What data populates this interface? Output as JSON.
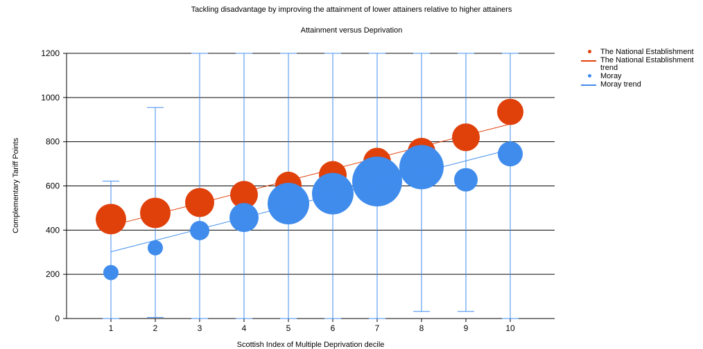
{
  "chart_data": {
    "type": "scatter",
    "title": "Tackling disadvantage by improving the attainment of lower attainers relative to higher attainers",
    "subtitle": "Attainment versus Deprivation",
    "xlabel": "Scottish Index of Multiple Deprivation decile",
    "ylabel": "Complementary Tariff Points",
    "xlim": [
      0,
      11
    ],
    "ylim": [
      0,
      1200
    ],
    "xticks": [
      1,
      2,
      3,
      4,
      5,
      6,
      7,
      8,
      9,
      10
    ],
    "yticks": [
      0,
      200,
      400,
      600,
      800,
      1000,
      1200
    ],
    "grid": "horizontal",
    "legend_position": "top-right",
    "series": [
      {
        "name": "The National Establishment",
        "color": "#e0400a",
        "marker": "bubble",
        "points": [
          {
            "x": 1,
            "y": 450,
            "size": 22
          },
          {
            "x": 2,
            "y": 478,
            "size": 22
          },
          {
            "x": 3,
            "y": 525,
            "size": 21
          },
          {
            "x": 4,
            "y": 560,
            "size": 20
          },
          {
            "x": 5,
            "y": 605,
            "size": 19
          },
          {
            "x": 6,
            "y": 650,
            "size": 20
          },
          {
            "x": 7,
            "y": 710,
            "size": 20
          },
          {
            "x": 8,
            "y": 755,
            "size": 20
          },
          {
            "x": 9,
            "y": 820,
            "size": 20
          },
          {
            "x": 10,
            "y": 935,
            "size": 19
          }
        ]
      },
      {
        "name": "The National Establishment trend",
        "color": "#e0400a",
        "type": "line",
        "x": [
          1,
          10
        ],
        "y": [
          420,
          880
        ]
      },
      {
        "name": "Moray",
        "color": "#3f8ced",
        "marker": "bubble",
        "points": [
          {
            "x": 1,
            "y": 208,
            "size": 11,
            "err_low": 0,
            "err_high": 622
          },
          {
            "x": 2,
            "y": 320,
            "size": 11,
            "err_low": 5,
            "err_high": 955
          },
          {
            "x": 3,
            "y": 398,
            "size": 14,
            "err_low": 0,
            "err_high": 1200
          },
          {
            "x": 4,
            "y": 457,
            "size": 21,
            "err_low": 0,
            "err_high": 1200
          },
          {
            "x": 5,
            "y": 520,
            "size": 30,
            "err_low": 0,
            "err_high": 1200
          },
          {
            "x": 6,
            "y": 565,
            "size": 30,
            "err_low": 0,
            "err_high": 1200
          },
          {
            "x": 7,
            "y": 620,
            "size": 36,
            "err_low": 0,
            "err_high": 1200
          },
          {
            "x": 8,
            "y": 685,
            "size": 32,
            "err_low": 32,
            "err_high": 1200
          },
          {
            "x": 9,
            "y": 628,
            "size": 17,
            "err_low": 32,
            "err_high": 1200
          },
          {
            "x": 10,
            "y": 745,
            "size": 18,
            "err_low": 0,
            "err_high": 1200
          }
        ]
      },
      {
        "name": "Moray trend",
        "color": "#3f8ced",
        "type": "line",
        "x": [
          1,
          10
        ],
        "y": [
          302,
          765
        ]
      }
    ]
  },
  "legend": [
    {
      "label": "The National Establishment",
      "kind": "dot",
      "color": "#e0400a"
    },
    {
      "label": "The National Establishment trend",
      "kind": "line",
      "color": "#e0400a"
    },
    {
      "label": "Moray",
      "kind": "dot",
      "color": "#3f8ced"
    },
    {
      "label": "Moray trend",
      "kind": "line",
      "color": "#3f8ced"
    }
  ]
}
